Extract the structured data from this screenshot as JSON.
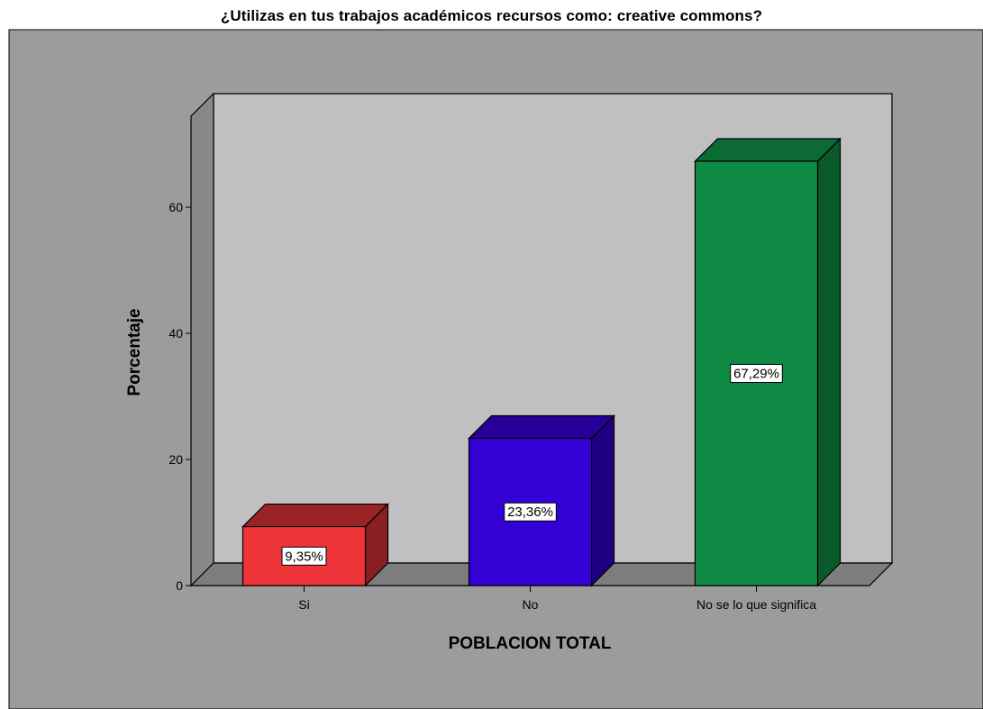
{
  "chart_data": {
    "type": "bar",
    "title": "¿Utilizas en tus trabajos académicos recursos como: creative commons?",
    "xlabel": "POBLACION TOTAL",
    "ylabel": "Porcentaje",
    "categories": [
      "Si",
      "No",
      "No se lo que significa"
    ],
    "values": [
      9.35,
      23.36,
      67.29
    ],
    "value_labels": [
      "9,35%",
      "23,36%",
      "67,29%"
    ],
    "yticks": [
      0,
      20,
      40,
      60
    ],
    "ylim": [
      0,
      74
    ],
    "grid": false,
    "legend": "none",
    "style": "3d",
    "colors": {
      "outer_background": "#9c9c9c",
      "plot_back_wall": "#c0c0c0",
      "plot_side_wall": "#888888",
      "plot_floor": "#7d7d7d",
      "bars": [
        {
          "front": "#ee3438",
          "side": "#8a1f22",
          "top": "#9a2326"
        },
        {
          "front": "#3300d6",
          "side": "#1f0084",
          "top": "#270098"
        },
        {
          "front": "#0f8a44",
          "side": "#0a5a2c",
          "top": "#0c6a35"
        }
      ]
    }
  }
}
